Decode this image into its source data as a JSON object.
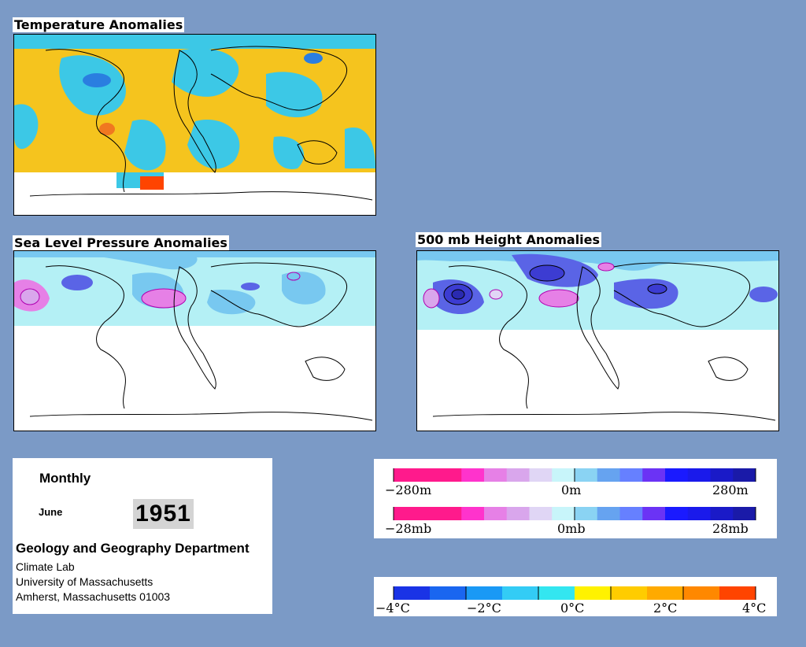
{
  "titles": {
    "temperature": "Temperature Anomalies",
    "slp": "Sea Level Pressure Anomalies",
    "height": "500 mb Height Anomalies"
  },
  "info": {
    "frequency": "Monthly",
    "month": "June",
    "year": "1951",
    "department": "Geology and Geography Department",
    "line1": "Climate Lab",
    "line2": "University of Massachusetts",
    "line3": "Amherst, Massachusetts 01003"
  },
  "height_legend": {
    "min_label": "−280m",
    "mid_label": "0m",
    "max_label": "280m",
    "colors": [
      "#ff1a8c",
      "#ff1a8c",
      "#ff1a8c",
      "#ff33cc",
      "#e680e6",
      "#d9a6ec",
      "#e0d6f5",
      "#c8f5fa",
      "#8ad3f3",
      "#66a3f0",
      "#6680ff",
      "#6b33f5",
      "#1a1aff",
      "#1a1aeb",
      "#1a1ac8",
      "#1a1aa8"
    ]
  },
  "slp_legend": {
    "min_label": "−28mb",
    "mid_label": "0mb",
    "max_label": "28mb",
    "colors": [
      "#ff1a8c",
      "#ff1a8c",
      "#ff1a8c",
      "#ff33cc",
      "#e680e6",
      "#d9a6ec",
      "#e0d6f5",
      "#c8f5fa",
      "#8ad3f3",
      "#66a3f0",
      "#6680ff",
      "#6b33f5",
      "#1a1aff",
      "#1a1aeb",
      "#1a1ac8",
      "#1a1aa8"
    ]
  },
  "temp_legend": {
    "labels": [
      "−4°C",
      "−2°C",
      "0°C",
      "2°C",
      "4°C"
    ],
    "colors": [
      "#1a33e6",
      "#1a66f0",
      "#1a99f5",
      "#33ccf5",
      "#33e6f0",
      "#fff200",
      "#ffcc00",
      "#ffaa00",
      "#ff8800",
      "#ff4400"
    ]
  },
  "colors": {
    "background": "#7b9ac6",
    "temp_cold": "#3cc8e6",
    "temp_warm": "#f5c41e",
    "pressure_low": "#b4f0f5",
    "pressure_mid": "#78c8f0",
    "pressure_high": "#5a64e6"
  }
}
